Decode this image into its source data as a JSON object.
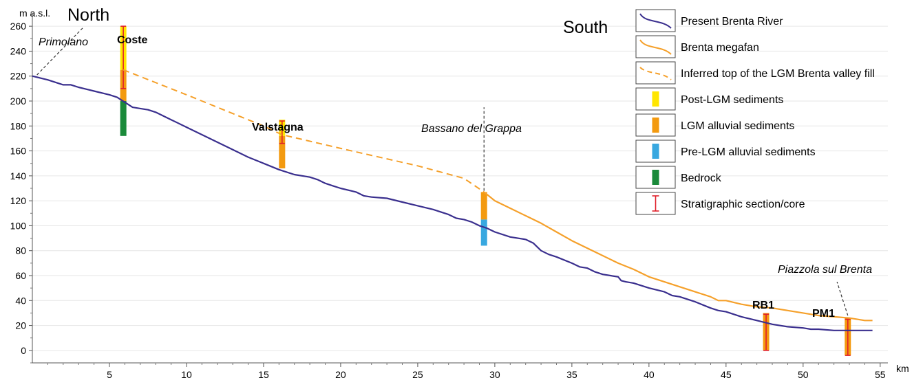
{
  "chart_data": {
    "type": "line",
    "title": "",
    "xlabel": "km",
    "ylabel": "m a.s.l.",
    "xlim": [
      0,
      55.5
    ],
    "ylim": [
      -10,
      270
    ],
    "x_ticks": [
      5,
      10,
      15,
      20,
      25,
      30,
      35,
      40,
      45,
      50,
      55
    ],
    "y_ticks": [
      0,
      20,
      40,
      60,
      80,
      100,
      120,
      140,
      160,
      180,
      200,
      220,
      240,
      260
    ],
    "grid": "horizontal",
    "legend_position": "top-right",
    "annotations": {
      "north": "North",
      "south": "South",
      "primolano": "Primolano",
      "bassano": "Bassano del Grappa",
      "piazzola": "Piazzola sul Brenta",
      "coste": "Coste",
      "valstagna": "Valstagna",
      "rb1": "RB1",
      "pm1": "PM1"
    },
    "series": [
      {
        "name": "Present Brenta River",
        "color": "#3a2f8e",
        "style": "solid",
        "x": [
          0,
          1,
          2,
          2.5,
          3,
          4,
          5,
          5.5,
          6,
          6.5,
          7,
          7.5,
          8,
          9,
          10,
          11,
          12,
          13,
          14,
          15,
          16,
          17,
          18,
          18.5,
          19,
          19.5,
          20,
          21,
          21.5,
          22,
          23,
          24,
          25,
          26,
          27,
          27.5,
          28,
          28.5,
          29,
          29.5,
          30,
          31,
          32,
          32.5,
          33,
          33.5,
          34,
          35,
          35.5,
          36,
          36.5,
          37,
          37.5,
          38,
          38.2,
          38.5,
          39,
          40,
          41,
          41.5,
          42,
          43,
          44,
          44.5,
          45,
          46,
          47,
          48,
          49,
          50,
          50.5,
          51,
          52,
          53,
          54,
          54.5
        ],
        "y": [
          220,
          217,
          213,
          213,
          211,
          208,
          205,
          203,
          199,
          195,
          194,
          193,
          191,
          185,
          179,
          173,
          167,
          161,
          155,
          150,
          145,
          141,
          139,
          137,
          134,
          132,
          130,
          127,
          124,
          123,
          122,
          119,
          116,
          113,
          109,
          106,
          105,
          103,
          100,
          98,
          95,
          91,
          89,
          86,
          80,
          77,
          75,
          70,
          67,
          66,
          63,
          61,
          60,
          59,
          56,
          55,
          54,
          50,
          47,
          44,
          43,
          39,
          34,
          32,
          31,
          27,
          24,
          21,
          19,
          18,
          17,
          17,
          16,
          16,
          16,
          16
        ]
      },
      {
        "name": "Brenta megafan",
        "color": "#f5a02a",
        "style": "solid",
        "x": [
          29.3,
          30,
          31,
          32,
          33,
          34,
          35,
          36,
          37,
          38,
          39,
          40,
          41,
          42,
          43,
          44,
          44.5,
          45,
          46,
          47,
          48,
          49,
          50,
          51,
          52,
          53,
          54,
          54.5
        ],
        "y": [
          127,
          120,
          114,
          108,
          102,
          95,
          88,
          82,
          76,
          70,
          65,
          59,
          55,
          51,
          47,
          43,
          40,
          40,
          37,
          35,
          34,
          32,
          30,
          28,
          27,
          26,
          24,
          24
        ]
      },
      {
        "name": "Inferred top of the LGM Brenta valley fill",
        "color": "#f5a02a",
        "style": "dashed",
        "x": [
          5.9,
          10,
          15,
          16.2,
          20,
          25,
          28,
          29.3
        ],
        "y": [
          225,
          205,
          180,
          173,
          162,
          148,
          138,
          127
        ]
      }
    ],
    "columns": [
      {
        "site": "Coste",
        "x": 5.9,
        "segments": [
          {
            "unit": "Bedrock",
            "from": 172,
            "to": 200
          },
          {
            "unit": "LGM alluvial sediments",
            "from": 200,
            "to": 225
          },
          {
            "unit": "Post-LGM sediments",
            "from": 225,
            "to": 260
          }
        ],
        "core": {
          "top": 260,
          "bottom": 210
        }
      },
      {
        "site": "Valstagna",
        "x": 16.2,
        "segments": [
          {
            "unit": "LGM alluvial sediments",
            "from": 146,
            "to": 172
          },
          {
            "unit": "Post-LGM sediments",
            "from": 172,
            "to": 185
          }
        ],
        "core": {
          "top": 184,
          "bottom": 166
        }
      },
      {
        "site": "Bassano del Grappa",
        "x": 29.3,
        "segments": [
          {
            "unit": "Pre-LGM alluvial sediments",
            "from": 84,
            "to": 105
          },
          {
            "unit": "LGM alluvial sediments",
            "from": 105,
            "to": 127
          }
        ],
        "core": null
      },
      {
        "site": "RB1",
        "x": 47.6,
        "segments": [
          {
            "unit": "LGM alluvial sediments",
            "from": 0,
            "to": 30
          }
        ],
        "core": {
          "top": 29,
          "bottom": 0
        }
      },
      {
        "site": "PM1",
        "x": 52.9,
        "segments": [
          {
            "unit": "LGM alluvial sediments",
            "from": -4,
            "to": 26
          }
        ],
        "core": {
          "top": 25,
          "bottom": -4
        }
      }
    ],
    "legend": [
      {
        "label": "Present Brenta River",
        "kind": "line",
        "color": "#3a2f8e"
      },
      {
        "label": "Brenta megafan",
        "kind": "line",
        "color": "#f5a02a"
      },
      {
        "label": "Inferred top of the LGM Brenta valley fill",
        "kind": "dashed",
        "color": "#f5a02a"
      },
      {
        "label": "Post-LGM sediments",
        "kind": "bar",
        "color": "#ffe600"
      },
      {
        "label": "LGM alluvial sediments",
        "kind": "bar",
        "color": "#f39a10"
      },
      {
        "label": "Pre-LGM alluvial sediments",
        "kind": "bar",
        "color": "#38a8e0"
      },
      {
        "label": "Bedrock",
        "kind": "bar",
        "color": "#1a8a3a"
      },
      {
        "label": "Stratigraphic section/core",
        "kind": "core",
        "color": "#e0202a"
      }
    ],
    "unit_colors": {
      "Post-LGM sediments": "#ffe600",
      "LGM alluvial sediments": "#f39a10",
      "Pre-LGM alluvial sediments": "#38a8e0",
      "Bedrock": "#1a8a3a"
    }
  }
}
